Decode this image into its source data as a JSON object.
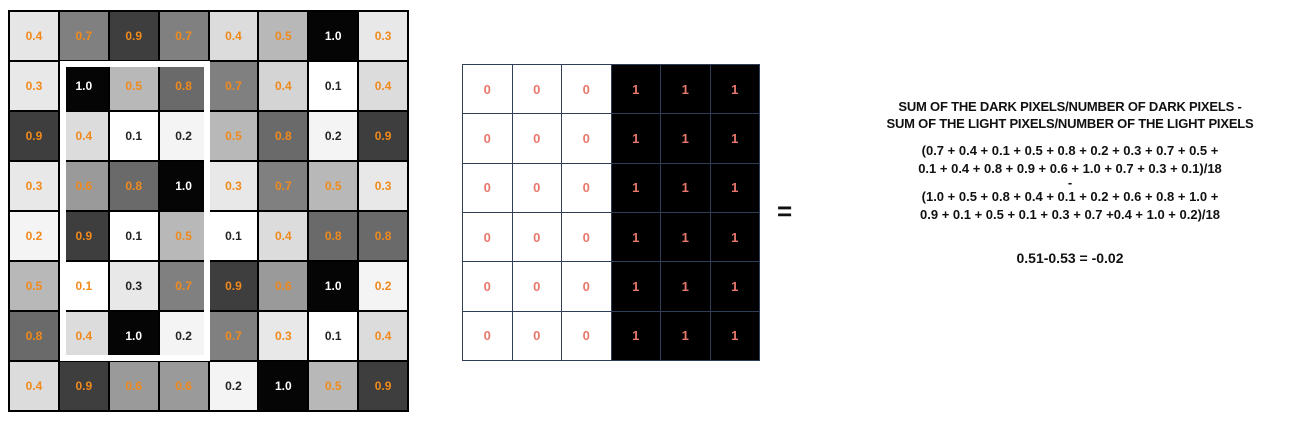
{
  "left_grid": {
    "rows": [
      [
        {
          "v": "0.4",
          "bg": "#e6e6e6"
        },
        {
          "v": "0.7",
          "bg": "#808080"
        },
        {
          "v": "0.9",
          "bg": "#3e3e3e"
        },
        {
          "v": "0.7",
          "bg": "#808080"
        },
        {
          "v": "0.4",
          "bg": "#dcdcdc"
        },
        {
          "v": "0.5",
          "bg": "#b8b8b8"
        },
        {
          "v": "1.0",
          "bg": "#050505",
          "c": "#ffffff"
        },
        {
          "v": "0.3",
          "bg": "#e8e8e8"
        }
      ],
      [
        {
          "v": "0.3",
          "bg": "#e8e8e8"
        },
        {
          "v": "1.0",
          "bg": "#050505",
          "c": "#ffffff"
        },
        {
          "v": "0.5",
          "bg": "#b8b8b8"
        },
        {
          "v": "0.8",
          "bg": "#6a6a6a"
        },
        {
          "v": "0.7",
          "bg": "#808080"
        },
        {
          "v": "0.4",
          "bg": "#d4d4d4"
        },
        {
          "v": "0.1",
          "bg": "#ffffff",
          "c": "#222222"
        },
        {
          "v": "0.4",
          "bg": "#dcdcdc"
        }
      ],
      [
        {
          "v": "0.9",
          "bg": "#3e3e3e"
        },
        {
          "v": "0.4",
          "bg": "#dcdcdc"
        },
        {
          "v": "0.1",
          "bg": "#ffffff",
          "c": "#222222"
        },
        {
          "v": "0.2",
          "bg": "#f4f4f4",
          "c": "#222222"
        },
        {
          "v": "0.5",
          "bg": "#b8b8b8"
        },
        {
          "v": "0.8",
          "bg": "#6a6a6a"
        },
        {
          "v": "0.2",
          "bg": "#f4f4f4",
          "c": "#222222"
        },
        {
          "v": "0.9",
          "bg": "#3e3e3e"
        }
      ],
      [
        {
          "v": "0.3",
          "bg": "#e8e8e8"
        },
        {
          "v": "0.6",
          "bg": "#9a9a9a"
        },
        {
          "v": "0.8",
          "bg": "#6a6a6a"
        },
        {
          "v": "1.0",
          "bg": "#050505",
          "c": "#ffffff"
        },
        {
          "v": "0.3",
          "bg": "#e8e8e8"
        },
        {
          "v": "0.7",
          "bg": "#808080"
        },
        {
          "v": "0.5",
          "bg": "#b8b8b8"
        },
        {
          "v": "0.3",
          "bg": "#e8e8e8"
        }
      ],
      [
        {
          "v": "0.2",
          "bg": "#f4f4f4"
        },
        {
          "v": "0.9",
          "bg": "#3e3e3e"
        },
        {
          "v": "0.1",
          "bg": "#ffffff",
          "c": "#222222"
        },
        {
          "v": "0.5",
          "bg": "#b8b8b8"
        },
        {
          "v": "0.1",
          "bg": "#ffffff",
          "c": "#222222"
        },
        {
          "v": "0.4",
          "bg": "#dcdcdc"
        },
        {
          "v": "0.8",
          "bg": "#6a6a6a"
        },
        {
          "v": "0.8",
          "bg": "#6a6a6a"
        }
      ],
      [
        {
          "v": "0.5",
          "bg": "#b8b8b8"
        },
        {
          "v": "0.1",
          "bg": "#ffffff"
        },
        {
          "v": "0.3",
          "bg": "#e8e8e8",
          "c": "#222222"
        },
        {
          "v": "0.7",
          "bg": "#808080"
        },
        {
          "v": "0.9",
          "bg": "#3e3e3e"
        },
        {
          "v": "0.6",
          "bg": "#9a9a9a"
        },
        {
          "v": "1.0",
          "bg": "#050505",
          "c": "#ffffff"
        },
        {
          "v": "0.2",
          "bg": "#f4f4f4"
        }
      ],
      [
        {
          "v": "0.8",
          "bg": "#6a6a6a"
        },
        {
          "v": "0.4",
          "bg": "#dcdcdc"
        },
        {
          "v": "1.0",
          "bg": "#050505",
          "c": "#ffffff"
        },
        {
          "v": "0.2",
          "bg": "#f4f4f4",
          "c": "#222222"
        },
        {
          "v": "0.7",
          "bg": "#808080"
        },
        {
          "v": "0.3",
          "bg": "#e8e8e8"
        },
        {
          "v": "0.1",
          "bg": "#ffffff",
          "c": "#222222"
        },
        {
          "v": "0.4",
          "bg": "#dcdcdc"
        }
      ],
      [
        {
          "v": "0.4",
          "bg": "#dcdcdc"
        },
        {
          "v": "0.9",
          "bg": "#3e3e3e"
        },
        {
          "v": "0.6",
          "bg": "#9a9a9a"
        },
        {
          "v": "0.6",
          "bg": "#9a9a9a"
        },
        {
          "v": "0.2",
          "bg": "#f4f4f4",
          "c": "#222222"
        },
        {
          "v": "1.0",
          "bg": "#050505",
          "c": "#ffffff"
        },
        {
          "v": "0.5",
          "bg": "#b8b8b8"
        },
        {
          "v": "0.9",
          "bg": "#3e3e3e"
        }
      ]
    ]
  },
  "mid_grid": {
    "rows": [
      [
        "0",
        "0",
        "0",
        "1",
        "1",
        "1"
      ],
      [
        "0",
        "0",
        "0",
        "1",
        "1",
        "1"
      ],
      [
        "0",
        "0",
        "0",
        "1",
        "1",
        "1"
      ],
      [
        "0",
        "0",
        "0",
        "1",
        "1",
        "1"
      ],
      [
        "0",
        "0",
        "0",
        "1",
        "1",
        "1"
      ],
      [
        "0",
        "0",
        "0",
        "1",
        "1",
        "1"
      ]
    ]
  },
  "equals_sign": "=",
  "formula": {
    "heading_line1": "SUM OF THE DARK PIXELS/NUMBER OF DARK PIXELS -",
    "heading_line2": "SUM OF THE LIGHT PIXELS/NUMBER OF THE LIGHT PIXELS",
    "dark_line1": "(0.7 + 0.4 + 0.1 + 0.5 + 0.8 + 0.2 + 0.3 + 0.7 + 0.5 +",
    "dark_line2": "0.1 + 0.4 + 0.8 + 0.9 + 0.6 + 1.0 + 0.7 + 0.3 + 0.1)/18",
    "minus": "-",
    "light_line1": "(1.0 + 0.5 + 0.8 + 0.4 + 0.1 + 0.2 + 0.6 + 0.8 + 1.0 +",
    "light_line2": "0.9 + 0.1 + 0.5 + 0.1 + 0.3 + 0.7 +0.4 + 1.0 + 0.2)/18",
    "result": "0.51-0.53 = -0.02"
  }
}
